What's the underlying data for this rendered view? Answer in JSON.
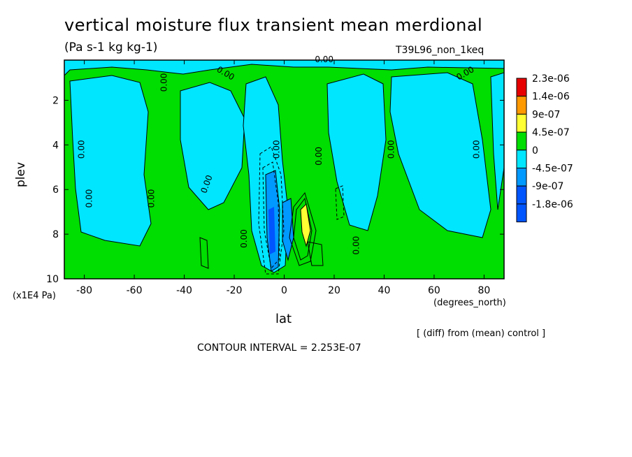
{
  "title": "vertical moisture flux transient mean merdional",
  "units": "(Pa s-1 kg kg-1)",
  "run_label": "T39L96_non_1keq",
  "note": "[ (diff) from (mean) control ]",
  "contour_interval": "CONTOUR INTERVAL = 2.253E-07",
  "chart_data": {
    "type": "heatmap",
    "xlabel": "lat",
    "x_unit": "(degrees_north)",
    "ylabel": "plev",
    "y_unit": "(x1E4 Pa)",
    "xlim": [
      -88,
      88
    ],
    "ylim": [
      10,
      0.2
    ],
    "x_ticks": [
      -80,
      -60,
      -40,
      -20,
      0,
      20,
      40,
      60,
      80
    ],
    "x_tick_labels": [
      "-80",
      "-60",
      "-40",
      "-20",
      "0",
      "20",
      "40",
      "60",
      "80"
    ],
    "y_ticks": [
      2,
      4,
      6,
      8,
      10
    ],
    "y_tick_labels": [
      "2",
      "4",
      "6",
      "8",
      "10"
    ],
    "legend": {
      "placement": "right",
      "labels": [
        "2.3e-06",
        "1.4e-06",
        "9e-07",
        "4.5e-07",
        "0",
        "-4.5e-07",
        "-9e-07",
        "-1.8e-06"
      ],
      "colors": [
        "#e60000",
        "#ff9900",
        "#ffff33",
        "#00dd00",
        "#00e6ff",
        "#0099ff",
        "#0055ff",
        "#0055ff"
      ]
    },
    "contour_labels": [
      {
        "text": "0.00",
        "lat": -80,
        "p": 4.2,
        "angle": -90
      },
      {
        "text": "0.00",
        "lat": -77,
        "p": 6.4,
        "angle": -90
      },
      {
        "text": "0.00",
        "lat": -47,
        "p": 1.2,
        "angle": -90
      },
      {
        "text": "0.00",
        "lat": -52,
        "p": 6.4,
        "angle": -90
      },
      {
        "text": "0.00",
        "lat": -30,
        "p": 5.8,
        "angle": -70
      },
      {
        "text": "0.00",
        "lat": -24,
        "p": 0.9,
        "angle": 30
      },
      {
        "text": "0.00",
        "lat": -15,
        "p": 8.2,
        "angle": -90
      },
      {
        "text": "0.00",
        "lat": -2,
        "p": 4.2,
        "angle": -90
      },
      {
        "text": "0.00",
        "lat": 15,
        "p": 4.5,
        "angle": -90
      },
      {
        "text": "0.00",
        "lat": 16,
        "p": 0.3,
        "angle": 0
      },
      {
        "text": "0.00",
        "lat": 30,
        "p": 8.5,
        "angle": -90
      },
      {
        "text": "0.00",
        "lat": 44,
        "p": 4.2,
        "angle": -90
      },
      {
        "text": "0.00",
        "lat": 73,
        "p": 0.9,
        "angle": -30
      },
      {
        "text": "0.00",
        "lat": 78,
        "p": 4.2,
        "angle": -90
      }
    ]
  }
}
